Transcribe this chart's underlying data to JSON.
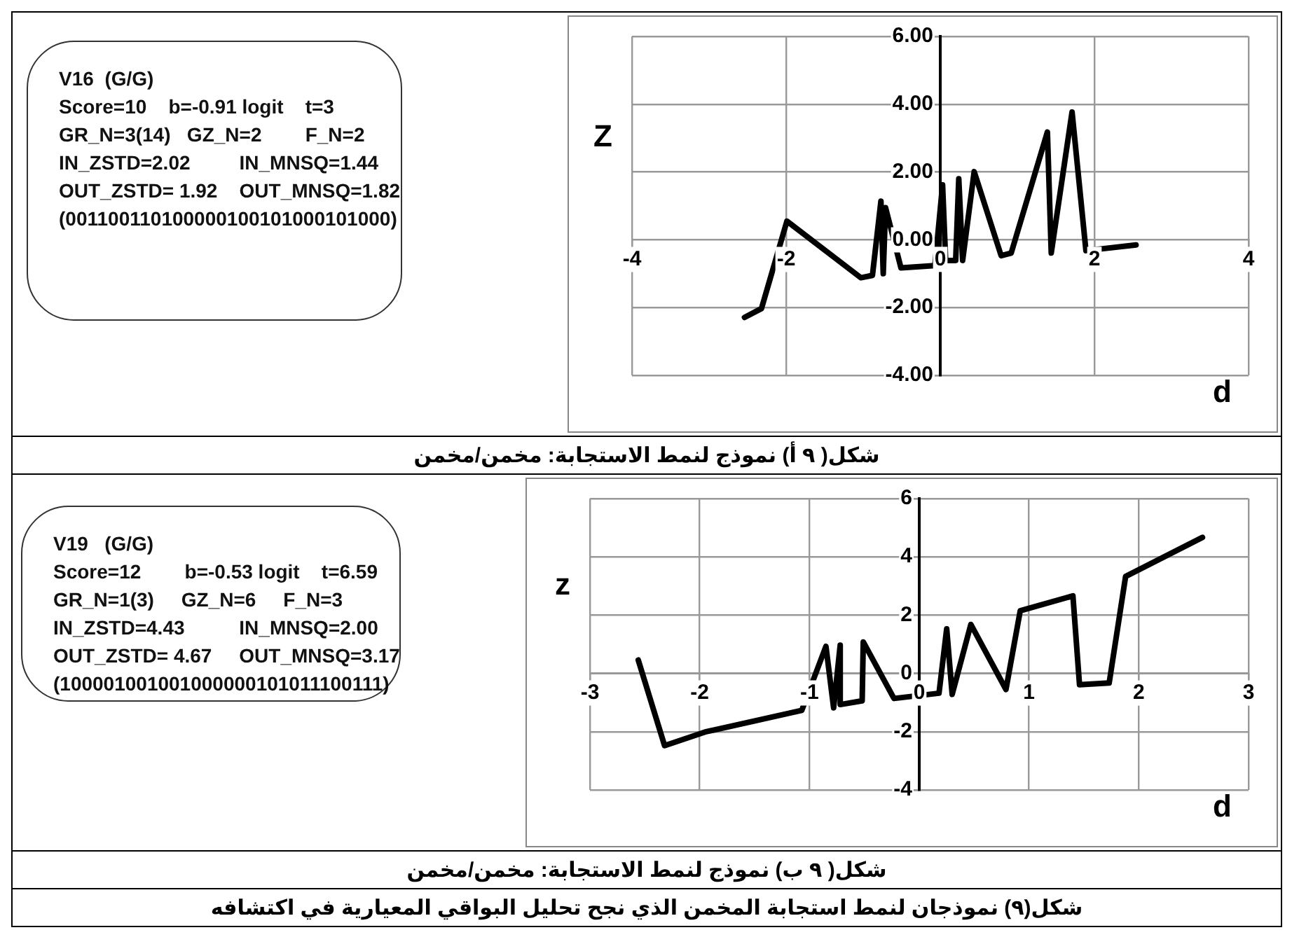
{
  "chart_data": [
    {
      "type": "other",
      "annotations": [
        "V16  (G/G)",
        "Score=10    b=-0.91 logit    t=3",
        "GR_N=3(14)   GZ_N=2        F_N=2",
        "IN_ZSTD=2.02         IN_MNSQ=1.44",
        "OUT_ZSTD= 1.92    OUT_MNSQ=1.82",
        "(001100110100000100101000101000)"
      ]
    },
    {
      "type": "line",
      "title": "شكل( ٩ أ) نموذج لنمط الاستجابة: مخمن/مخمن",
      "xlabel": "d",
      "ylabel": "Z",
      "grid": true,
      "xlim": [
        -4,
        4
      ],
      "xticks": [
        -4,
        -2,
        0,
        2,
        4
      ],
      "ylim": [
        -4,
        6
      ],
      "yticks": [
        {
          "value": -4,
          "label": "-4.00"
        },
        {
          "value": -2,
          "label": "-2.00"
        },
        {
          "value": 0,
          "label": "0.00"
        },
        {
          "value": 2,
          "label": "2.00"
        },
        {
          "value": 4,
          "label": "4.00"
        },
        {
          "value": 6,
          "label": "6.00"
        }
      ],
      "series": [
        {
          "color": "#000000",
          "x": [
            -2.54,
            -2.32,
            -1.99,
            -1.03,
            -0.88,
            -0.77,
            -0.74,
            -0.71,
            -0.51,
            -0.07,
            0.03,
            0.07,
            0.2,
            0.24,
            0.29,
            0.44,
            0.79,
            0.92,
            1.39,
            1.44,
            1.71,
            1.89,
            2.54
          ],
          "values": [
            -2.29,
            -2.03,
            0.55,
            -1.12,
            -1.05,
            1.14,
            -1.0,
            0.95,
            -0.83,
            -0.76,
            1.62,
            -0.61,
            -0.61,
            1.8,
            -0.61,
            2.01,
            -0.47,
            -0.39,
            3.18,
            -0.39,
            3.77,
            -0.32,
            -0.15
          ]
        }
      ]
    },
    {
      "type": "other",
      "annotations": [
        "V19   (G/G)",
        "Score=12        b=-0.53 logit    t=6.59",
        "GR_N=1(3)     GZ_N=6     F_N=3",
        "IN_ZSTD=4.43          IN_MNSQ=2.00",
        "OUT_ZSTD= 4.67     OUT_MNSQ=3.17",
        "(100001001001000000101011100111)"
      ]
    },
    {
      "type": "line",
      "title": "شكل( ٩ ب) نموذج لنمط الاستجابة: مخمن/مخمن",
      "xlabel": "d",
      "ylabel": "z",
      "grid": true,
      "annotations": [
        "شكل(٩) نموذجان لنمط استجابة المخمن الذي نجح تحليل البواقي المعيارية في اكتشافه"
      ],
      "xlim": [
        -3,
        3
      ],
      "xticks": [
        -3,
        -2,
        -1,
        0,
        1,
        2,
        3
      ],
      "ylim": [
        -4,
        6
      ],
      "yticks": [
        -4,
        -2,
        0,
        2,
        4,
        6
      ],
      "series": [
        {
          "color": "#000000",
          "x": [
            -2.56,
            -2.32,
            -1.95,
            -1.07,
            -0.85,
            -0.78,
            -0.72,
            -0.72,
            -0.52,
            -0.51,
            -0.23,
            0.18,
            0.25,
            0.3,
            0.47,
            0.79,
            0.92,
            1.4,
            1.46,
            1.73,
            1.88,
            2.58
          ],
          "values": [
            0.46,
            -2.48,
            -2.01,
            -1.27,
            0.93,
            -1.18,
            0.97,
            -1.07,
            -0.94,
            1.08,
            -0.86,
            -0.68,
            1.53,
            -0.72,
            1.68,
            -0.55,
            2.15,
            2.66,
            -0.39,
            -0.33,
            3.33,
            4.67
          ]
        }
      ]
    }
  ]
}
